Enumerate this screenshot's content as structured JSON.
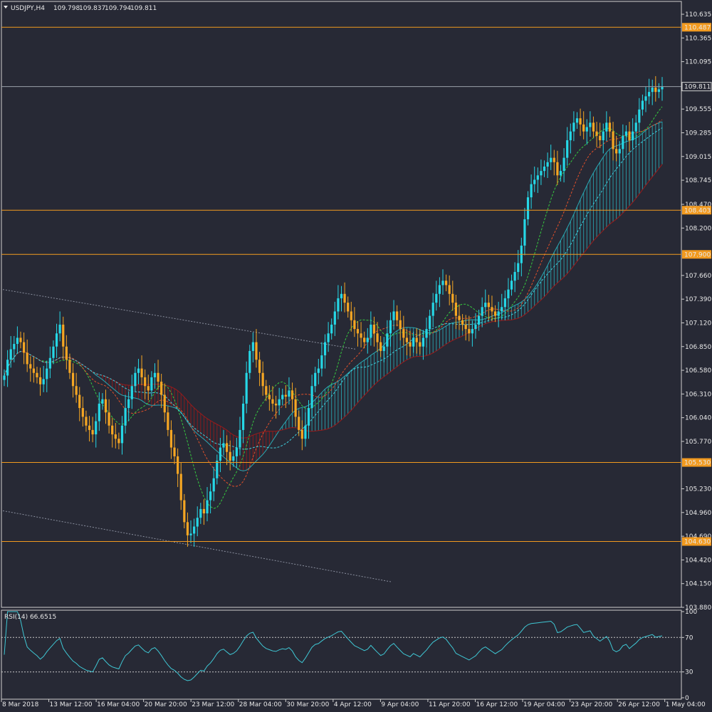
{
  "chart_data": {
    "type": "candlestick",
    "header": {
      "arrow": "triangle-down-icon",
      "symbol": "USDJPY,H4",
      "open": "109.798",
      "high": "109.837",
      "low": "109.794",
      "close": "109.811"
    },
    "price_axis_ticks": [
      "110.635",
      "110.365",
      "110.095",
      "109.555",
      "109.285",
      "109.015",
      "108.745",
      "108.470",
      "108.200",
      "107.660",
      "107.390",
      "107.120",
      "106.850",
      "106.580",
      "106.310",
      "106.040",
      "105.770",
      "105.230",
      "104.960",
      "104.690",
      "104.420",
      "104.150",
      "103.880"
    ],
    "ylim": [
      103.88,
      110.7
    ],
    "horizontal_levels": [
      {
        "value": 110.487,
        "label": "110.487"
      },
      {
        "value": 108.403,
        "label": "108.403"
      },
      {
        "value": 107.9,
        "label": "107.900"
      },
      {
        "value": 105.53,
        "label": "105.530"
      },
      {
        "value": 104.63,
        "label": "104.630"
      }
    ],
    "current_price": {
      "value": 109.811,
      "label": "109.811"
    },
    "time_axis_labels": [
      "8 Mar 2018",
      "13 Mar 12:00",
      "16 Mar 04:00",
      "20 Mar 20:00",
      "23 Mar 12:00",
      "28 Mar 04:00",
      "30 Mar 20:00",
      "4 Apr 12:00",
      "9 Apr 04:00",
      "11 Apr 20:00",
      "16 Apr 12:00",
      "19 Apr 04:00",
      "23 Apr 20:00",
      "26 Apr 12:00",
      "1 May 04:00"
    ],
    "closes": [
      106.52,
      106.7,
      106.82,
      106.88,
      106.95,
      106.9,
      106.78,
      106.65,
      106.6,
      106.55,
      106.5,
      106.42,
      106.48,
      106.6,
      106.72,
      106.85,
      107.0,
      107.1,
      106.85,
      106.7,
      106.55,
      106.4,
      106.3,
      106.15,
      106.05,
      105.95,
      105.9,
      105.85,
      106.0,
      106.2,
      106.25,
      106.1,
      105.95,
      105.85,
      105.8,
      105.75,
      105.95,
      106.15,
      106.25,
      106.4,
      106.55,
      106.6,
      106.5,
      106.4,
      106.35,
      106.5,
      106.55,
      106.45,
      106.3,
      106.1,
      105.9,
      105.7,
      105.6,
      105.4,
      105.1,
      104.85,
      104.7,
      104.72,
      104.8,
      104.9,
      105.0,
      104.95,
      105.1,
      105.2,
      105.35,
      105.55,
      105.7,
      105.75,
      105.65,
      105.55,
      105.6,
      105.7,
      105.9,
      106.2,
      106.55,
      106.8,
      106.9,
      106.7,
      106.55,
      106.4,
      106.3,
      106.25,
      106.2,
      106.18,
      106.25,
      106.3,
      106.28,
      106.35,
      106.25,
      106.05,
      105.9,
      105.8,
      105.95,
      106.15,
      106.4,
      106.55,
      106.6,
      106.75,
      106.9,
      107.0,
      107.1,
      107.25,
      107.4,
      107.45,
      107.35,
      107.25,
      107.15,
      107.05,
      107.0,
      106.95,
      106.9,
      106.95,
      107.1,
      107.0,
      106.9,
      106.8,
      106.85,
      107.0,
      107.15,
      107.25,
      107.15,
      107.05,
      106.95,
      106.9,
      106.85,
      106.95,
      106.9,
      106.85,
      106.95,
      107.05,
      107.2,
      107.35,
      107.45,
      107.55,
      107.6,
      107.55,
      107.45,
      107.35,
      107.2,
      107.15,
      107.1,
      107.05,
      107.0,
      107.05,
      107.1,
      107.2,
      107.3,
      107.35,
      107.3,
      107.25,
      107.2,
      107.25,
      107.3,
      107.4,
      107.5,
      107.6,
      107.7,
      107.8,
      108.0,
      108.3,
      108.55,
      108.7,
      108.75,
      108.8,
      108.85,
      108.9,
      108.95,
      109.0,
      108.95,
      108.8,
      108.85,
      109.0,
      109.2,
      109.3,
      109.4,
      109.45,
      109.38,
      109.3,
      109.35,
      109.4,
      109.3,
      109.25,
      109.2,
      109.3,
      109.4,
      109.3,
      109.1,
      109.05,
      109.1,
      109.25,
      109.3,
      109.2,
      109.3,
      109.4,
      109.55,
      109.65,
      109.7,
      109.75,
      109.8,
      109.75,
      109.78,
      109.81
    ],
    "rsi": {
      "label": "RSI(14) 66.6515",
      "period": 14,
      "levels": [
        70,
        30
      ],
      "axis_ticks": [
        "100",
        "70",
        "30",
        "0"
      ],
      "ylim": [
        0,
        100
      ]
    }
  },
  "colors": {
    "background": "#272935",
    "grid_text": "#e8e8e8",
    "bull": "#26d7e6",
    "bear": "#f5a623",
    "level_line": "#f29a1f",
    "level_label_bg": "#f29a1f",
    "rsi_line": "#3fc7d4",
    "cloud_bull": "#2aa8b3",
    "cloud_bear": "#9b1a1a",
    "ma_fast": "#36c93f",
    "ma_mid": "#e0502a",
    "ma_slow": "#3fd1e0",
    "channel": "#8a8f9e"
  }
}
